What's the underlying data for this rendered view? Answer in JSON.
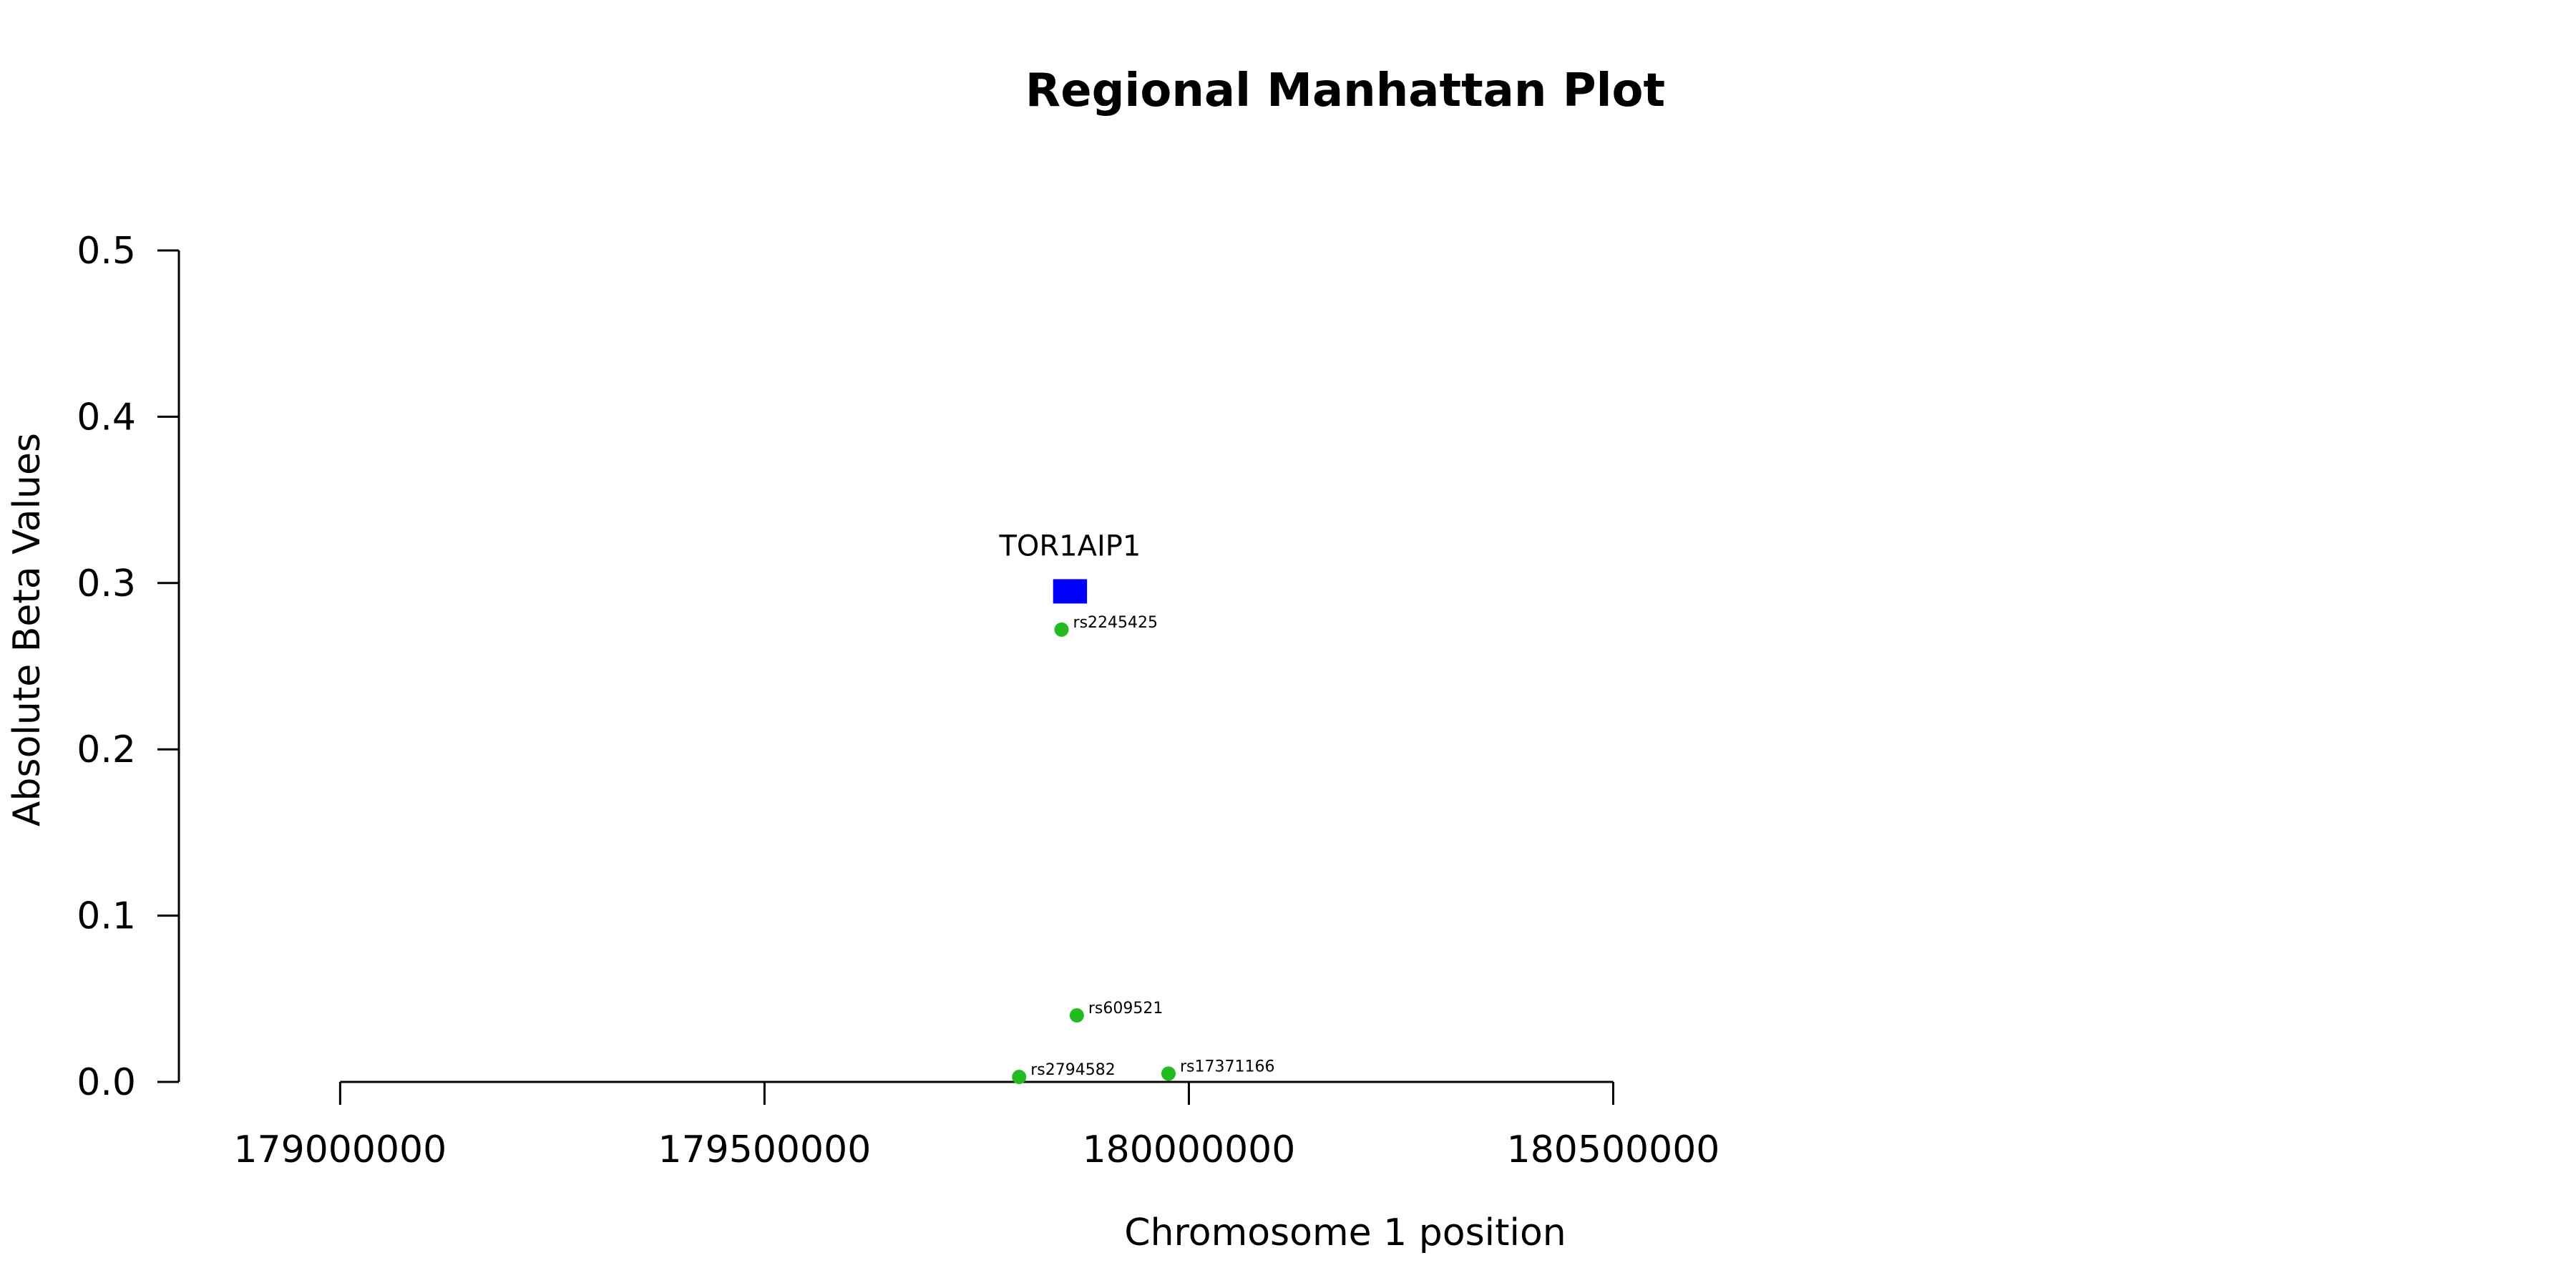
{
  "chart_data": {
    "type": "scatter",
    "title": "Regional Manhattan Plot",
    "xlabel": "Chromosome 1 position",
    "ylabel": "Absolute Beta Values",
    "xlim": [
      178810000,
      181040000
    ],
    "ylim": [
      0,
      0.5
    ],
    "x_ticks": [
      179000000,
      179500000,
      180000000,
      180500000
    ],
    "y_ticks": [
      0.0,
      0.1,
      0.2,
      0.3,
      0.4,
      0.5
    ],
    "y_tick_labels": [
      "0.0",
      "0.1",
      "0.2",
      "0.3",
      "0.4",
      "0.5"
    ],
    "point_color": "#22bb22",
    "points": [
      {
        "name": "rs2245425",
        "x": 179850000,
        "y": 0.272
      },
      {
        "name": "rs609521",
        "x": 179868000,
        "y": 0.04
      },
      {
        "name": "rs2794582",
        "x": 179800000,
        "y": 0.003
      },
      {
        "name": "rs17371166",
        "x": 179976000,
        "y": 0.005
      }
    ],
    "genes": [
      {
        "name": "TOR1AIP1",
        "start": 179840000,
        "end": 179880000,
        "y": 0.295,
        "color": "#0000ff"
      }
    ]
  }
}
